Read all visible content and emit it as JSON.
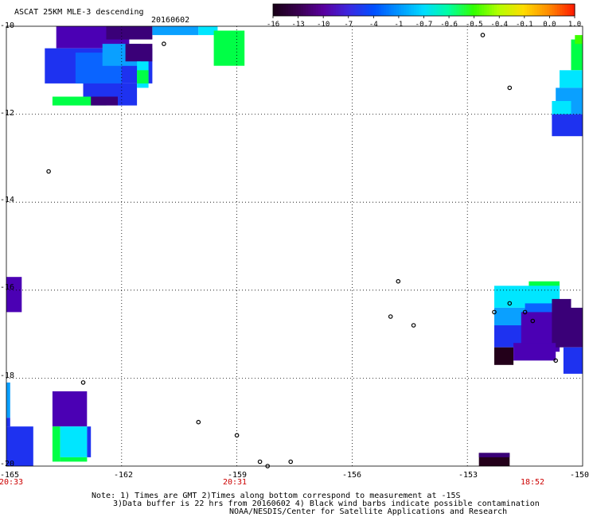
{
  "title": "ASCAT 25KM MLE-3 descending",
  "date": "20160602",
  "colorbar": {
    "labels": [
      "-16",
      "-13",
      "-10",
      "-7",
      "-4",
      "-1",
      "-0.7",
      "-0.6",
      "-0.5",
      "-0.4",
      "-0.1",
      "0.0",
      "1.0"
    ],
    "colors": [
      "#1a001a",
      "#3a0050",
      "#5a00a0",
      "#3c28e0",
      "#0050ff",
      "#0096ff",
      "#00dcff",
      "#00ffa0",
      "#32ff00",
      "#b4ff00",
      "#ffdc00",
      "#ff8c00",
      "#ff1e00"
    ]
  },
  "y_axis": {
    "ticks": [
      "-10",
      "-12",
      "-14",
      "-16",
      "-18",
      "-20"
    ]
  },
  "x_axis": {
    "ticks": [
      "-165",
      "-162",
      "-159",
      "-156",
      "-153",
      "-150"
    ],
    "times": [
      "20:33",
      "20:31",
      "18:52"
    ]
  },
  "notes": {
    "line1": "Note: 1) Times are GMT 2)Times along bottom correspond to measurement at -15S",
    "line2": "3)Data buffer is 22 hrs from 20160602 4) Black wind barbs indicate possible contamination",
    "line3": "NOAA/NESDIS/Center for Satellite Applications and Research"
  },
  "map": {
    "lon_range": [
      -165,
      -150
    ],
    "lat_range": [
      -20,
      -10
    ],
    "colors": {
      "purple": "#4b00b4",
      "darkpurple": "#3a0078",
      "verydark": "#23001a",
      "blue": "#1e32f0",
      "midblue": "#0a64ff",
      "lightblue": "#0aa0ff",
      "cyan": "#00e6ff",
      "green": "#00ff46",
      "lime": "#3cff00"
    },
    "cells": [
      {
        "lon": [
          -163.7,
          -161.8
        ],
        "lat": [
          -10.0,
          -10.5
        ],
        "c": "purple"
      },
      {
        "lon": [
          -162.4,
          -161.2
        ],
        "lat": [
          -10.0,
          -10.3
        ],
        "c": "darkpurple"
      },
      {
        "lon": [
          -161.2,
          -160.0
        ],
        "lat": [
          -10.0,
          -10.2
        ],
        "c": "lightblue"
      },
      {
        "lon": [
          -160.0,
          -159.5
        ],
        "lat": [
          -10.0,
          -10.2
        ],
        "c": "cyan"
      },
      {
        "lon": [
          -164.0,
          -161.2
        ],
        "lat": [
          -10.5,
          -11.3
        ],
        "c": "blue"
      },
      {
        "lon": [
          -163.2,
          -162.0
        ],
        "lat": [
          -10.6,
          -11.3
        ],
        "c": "midblue"
      },
      {
        "lon": [
          -162.5,
          -161.5
        ],
        "lat": [
          -10.4,
          -10.9
        ],
        "c": "lightblue"
      },
      {
        "lon": [
          -161.9,
          -161.2
        ],
        "lat": [
          -10.4,
          -10.8
        ],
        "c": "darkpurple"
      },
      {
        "lon": [
          -163.0,
          -161.6
        ],
        "lat": [
          -11.3,
          -11.6
        ],
        "c": "blue"
      },
      {
        "lon": [
          -161.6,
          -161.3
        ],
        "lat": [
          -10.8,
          -11.4
        ],
        "c": "cyan"
      },
      {
        "lon": [
          -161.6,
          -161.3
        ],
        "lat": [
          -11.0,
          -11.3
        ],
        "c": "green"
      },
      {
        "lon": [
          -163.8,
          -162.4
        ],
        "lat": [
          -11.6,
          -11.8
        ],
        "c": "green"
      },
      {
        "lon": [
          -162.8,
          -162.1
        ],
        "lat": [
          -11.6,
          -11.8
        ],
        "c": "darkpurple"
      },
      {
        "lon": [
          -162.1,
          -161.6
        ],
        "lat": [
          -11.6,
          -11.8
        ],
        "c": "blue"
      },
      {
        "lon": [
          -159.6,
          -158.8
        ],
        "lat": [
          -10.1,
          -10.9
        ],
        "c": "green"
      },
      {
        "lon": [
          -150.3,
          -150.0
        ],
        "lat": [
          -10.3,
          -11.0
        ],
        "c": "green"
      },
      {
        "lon": [
          -150.2,
          -150.0
        ],
        "lat": [
          -10.2,
          -10.4
        ],
        "c": "lime"
      },
      {
        "lon": [
          -150.6,
          -150.0
        ],
        "lat": [
          -11.0,
          -11.4
        ],
        "c": "cyan"
      },
      {
        "lon": [
          -150.7,
          -150.0
        ],
        "lat": [
          -11.4,
          -12.0
        ],
        "c": "lightblue"
      },
      {
        "lon": [
          -150.8,
          -150.3
        ],
        "lat": [
          -11.7,
          -12.1
        ],
        "c": "cyan"
      },
      {
        "lon": [
          -150.8,
          -150.0
        ],
        "lat": [
          -12.0,
          -12.5
        ],
        "c": "blue"
      },
      {
        "lon": [
          -165.0,
          -164.6
        ],
        "lat": [
          -15.7,
          -16.5
        ],
        "c": "purple"
      },
      {
        "lon": [
          -151.4,
          -150.6
        ],
        "lat": [
          -15.8,
          -16.0
        ],
        "c": "green"
      },
      {
        "lon": [
          -152.3,
          -150.6
        ],
        "lat": [
          -15.9,
          -16.4
        ],
        "c": "cyan"
      },
      {
        "lon": [
          -152.3,
          -151.3
        ],
        "lat": [
          -16.4,
          -16.8
        ],
        "c": "lightblue"
      },
      {
        "lon": [
          -151.5,
          -150.8
        ],
        "lat": [
          -16.3,
          -16.8
        ],
        "c": "midblue"
      },
      {
        "lon": [
          -152.3,
          -151.5
        ],
        "lat": [
          -16.8,
          -17.3
        ],
        "c": "blue"
      },
      {
        "lon": [
          -151.6,
          -150.6
        ],
        "lat": [
          -16.5,
          -17.4
        ],
        "c": "purple"
      },
      {
        "lon": [
          -150.8,
          -150.3
        ],
        "lat": [
          -16.2,
          -16.5
        ],
        "c": "darkpurple"
      },
      {
        "lon": [
          -150.8,
          -150.0
        ],
        "lat": [
          -16.4,
          -17.3
        ],
        "c": "darkpurple"
      },
      {
        "lon": [
          -152.3,
          -151.8
        ],
        "lat": [
          -17.3,
          -17.7
        ],
        "c": "verydark"
      },
      {
        "lon": [
          -151.8,
          -150.7
        ],
        "lat": [
          -17.2,
          -17.6
        ],
        "c": "purple"
      },
      {
        "lon": [
          -150.5,
          -150.0
        ],
        "lat": [
          -17.3,
          -17.9
        ],
        "c": "blue"
      },
      {
        "lon": [
          -165.0,
          -164.9
        ],
        "lat": [
          -18.1,
          -18.9
        ],
        "c": "lightblue"
      },
      {
        "lon": [
          -165.0,
          -164.9
        ],
        "lat": [
          -18.9,
          -19.1
        ],
        "c": "blue"
      },
      {
        "lon": [
          -163.8,
          -162.9
        ],
        "lat": [
          -18.3,
          -19.1
        ],
        "c": "purple"
      },
      {
        "lon": [
          -165.0,
          -164.3
        ],
        "lat": [
          -19.1,
          -20.0
        ],
        "c": "blue"
      },
      {
        "lon": [
          -163.8,
          -163.6
        ],
        "lat": [
          -19.1,
          -19.9
        ],
        "c": "green"
      },
      {
        "lon": [
          -163.6,
          -162.9
        ],
        "lat": [
          -19.1,
          -19.8
        ],
        "c": "cyan"
      },
      {
        "lon": [
          -163.6,
          -162.9
        ],
        "lat": [
          -19.8,
          -19.9
        ],
        "c": "green"
      },
      {
        "lon": [
          -162.9,
          -162.8
        ],
        "lat": [
          -19.1,
          -19.8
        ],
        "c": "blue"
      },
      {
        "lon": [
          -152.7,
          -151.9
        ],
        "lat": [
          -19.7,
          -20.0
        ],
        "c": "verydark"
      },
      {
        "lon": [
          -152.7,
          -151.9
        ],
        "lat": [
          -19.7,
          -19.8
        ],
        "c": "darkpurple"
      }
    ],
    "islands": [
      {
        "lon": -160.9,
        "lat": -10.4
      },
      {
        "lon": -163.9,
        "lat": -13.3
      },
      {
        "lon": -152.6,
        "lat": -10.2
      },
      {
        "lon": -151.9,
        "lat": -11.4
      },
      {
        "lon": -154.8,
        "lat": -15.8
      },
      {
        "lon": -155.0,
        "lat": -16.6
      },
      {
        "lon": -154.4,
        "lat": -16.8
      },
      {
        "lon": -152.3,
        "lat": -16.5
      },
      {
        "lon": -151.9,
        "lat": -16.3
      },
      {
        "lon": -151.5,
        "lat": -16.5
      },
      {
        "lon": -151.3,
        "lat": -16.7
      },
      {
        "lon": -150.7,
        "lat": -17.6
      },
      {
        "lon": -163.0,
        "lat": -18.1
      },
      {
        "lon": -160.0,
        "lat": -19.0
      },
      {
        "lon": -159.0,
        "lat": -19.3
      },
      {
        "lon": -157.6,
        "lat": -19.9
      },
      {
        "lon": -158.4,
        "lat": -19.9
      },
      {
        "lon": -158.2,
        "lat": -20.0
      }
    ]
  }
}
